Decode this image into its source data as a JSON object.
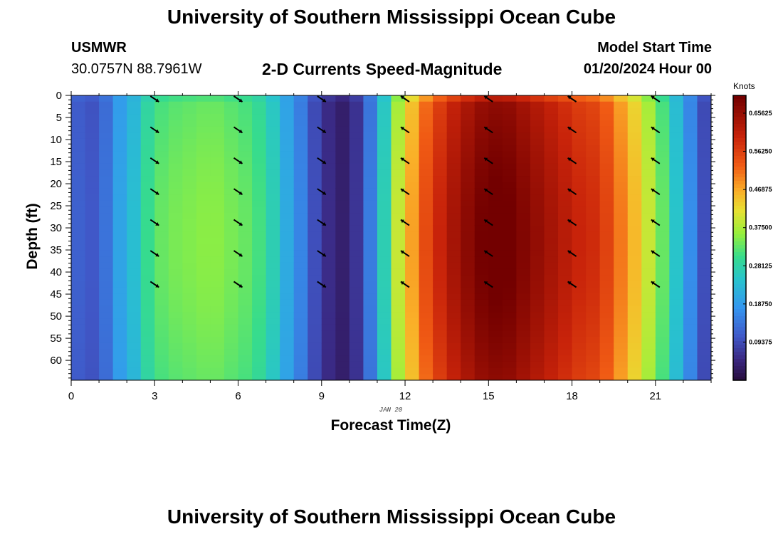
{
  "header": {
    "title": "University of Southern Mississippi Ocean Cube",
    "station": "USMWR",
    "location": "30.0757N  88.7961W",
    "subtitle": "2-D Currents Speed-Magnitude",
    "model_start_label": "Model Start Time",
    "model_start_value": "01/20/2024 Hour 00"
  },
  "footer": {
    "title": "University of Southern Mississippi Ocean Cube"
  },
  "chart_data": {
    "type": "heatmap",
    "xlabel": "Forecast Time(Z)",
    "ylabel": "Depth (ft)",
    "date_label": "JAN 20",
    "xlim": [
      0,
      23
    ],
    "ylim": [
      0,
      64.5
    ],
    "y_inverted": true,
    "x_ticks": [
      0,
      3,
      6,
      9,
      12,
      15,
      18,
      21
    ],
    "y_ticks": [
      0,
      5,
      10,
      15,
      20,
      25,
      30,
      35,
      40,
      45,
      50,
      55,
      60
    ],
    "colorbar": {
      "unit": "Knots",
      "range": [
        0,
        0.7
      ],
      "ticks": [
        "0.65625",
        "0.56250",
        "0.46875",
        "0.37500",
        "0.28125",
        "0.18750",
        "0.09375"
      ],
      "tick_values": [
        0.65625,
        0.5625,
        0.46875,
        0.375,
        0.28125,
        0.1875,
        0.09375
      ]
    },
    "hourly_speed_knots": [
      {
        "hour": 0.5,
        "speed": 0.12
      },
      {
        "hour": 1.0,
        "speed": 0.11
      },
      {
        "hour": 1.5,
        "speed": 0.14
      },
      {
        "hour": 2.0,
        "speed": 0.2
      },
      {
        "hour": 2.5,
        "speed": 0.24
      },
      {
        "hour": 3.0,
        "speed": 0.3
      },
      {
        "hour": 3.5,
        "speed": 0.33
      },
      {
        "hour": 4.0,
        "speed": 0.34
      },
      {
        "hour": 4.5,
        "speed": 0.345
      },
      {
        "hour": 5.0,
        "speed": 0.35
      },
      {
        "hour": 5.5,
        "speed": 0.35
      },
      {
        "hour": 6.0,
        "speed": 0.34
      },
      {
        "hour": 6.5,
        "speed": 0.33
      },
      {
        "hour": 7.0,
        "speed": 0.31
      },
      {
        "hour": 7.5,
        "speed": 0.27
      },
      {
        "hour": 8.0,
        "speed": 0.21
      },
      {
        "hour": 8.5,
        "speed": 0.16
      },
      {
        "hour": 9.0,
        "speed": 0.1
      },
      {
        "hour": 9.5,
        "speed": 0.06
      },
      {
        "hour": 10.0,
        "speed": 0.04
      },
      {
        "hour": 10.5,
        "speed": 0.07
      },
      {
        "hour": 11.0,
        "speed": 0.15
      },
      {
        "hour": 11.5,
        "speed": 0.27
      },
      {
        "hour": 12.0,
        "speed": 0.39
      },
      {
        "hour": 12.5,
        "speed": 0.47
      },
      {
        "hour": 13.0,
        "speed": 0.54
      },
      {
        "hour": 13.5,
        "speed": 0.59
      },
      {
        "hour": 14.0,
        "speed": 0.63
      },
      {
        "hour": 14.5,
        "speed": 0.66
      },
      {
        "hour": 15.0,
        "speed": 0.685
      },
      {
        "hour": 15.5,
        "speed": 0.695
      },
      {
        "hour": 16.0,
        "speed": 0.69
      },
      {
        "hour": 16.5,
        "speed": 0.67
      },
      {
        "hour": 17.0,
        "speed": 0.65
      },
      {
        "hour": 17.5,
        "speed": 0.63
      },
      {
        "hour": 18.0,
        "speed": 0.61
      },
      {
        "hour": 18.5,
        "speed": 0.59
      },
      {
        "hour": 19.0,
        "speed": 0.58
      },
      {
        "hour": 19.5,
        "speed": 0.55
      },
      {
        "hour": 20.0,
        "speed": 0.5
      },
      {
        "hour": 20.5,
        "speed": 0.45
      },
      {
        "hour": 21.0,
        "speed": 0.39
      },
      {
        "hour": 21.5,
        "speed": 0.33
      },
      {
        "hour": 22.0,
        "speed": 0.25
      },
      {
        "hour": 22.5,
        "speed": 0.17
      },
      {
        "hour": 23.0,
        "speed": 0.1
      }
    ],
    "direction_arrows": {
      "hours": [
        3,
        6,
        9,
        12,
        15,
        18,
        21
      ],
      "depths_ft": [
        0,
        7,
        14,
        21,
        28,
        35,
        42
      ],
      "direction": [
        "southeast",
        "southeast",
        "southeast",
        "northwest",
        "northwest",
        "northwest",
        "northwest"
      ]
    }
  }
}
